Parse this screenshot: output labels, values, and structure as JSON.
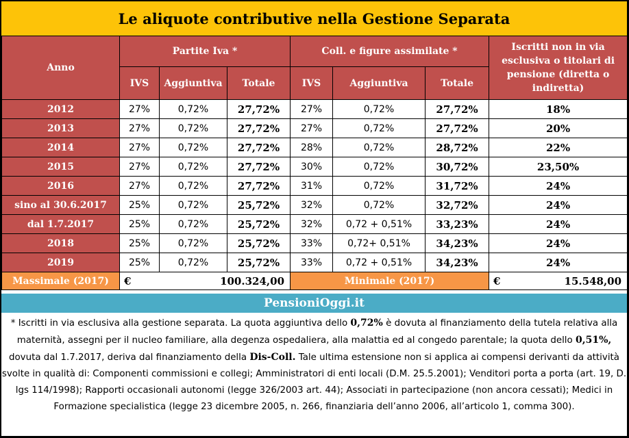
{
  "title": "Le aliquote contributive nella Gestione Separata",
  "headers": {
    "anno": "Anno",
    "group1": "Partite Iva *",
    "group2": "Coll. e figure assimilate *",
    "group3": "Iscritti non in via esclusiva o titolari di pensione (diretta o indiretta)",
    "ivs": "IVS",
    "aggiuntiva": "Aggiuntiva",
    "totale": "Totale"
  },
  "rows": [
    {
      "anno": "2012",
      "pi_ivs": "27%",
      "pi_agg": "0,72%",
      "pi_tot": "27,72%",
      "co_ivs": "27%",
      "co_agg": "0,72%",
      "co_tot": "27,72%",
      "iscr": "18%"
    },
    {
      "anno": "2013",
      "pi_ivs": "27%",
      "pi_agg": "0,72%",
      "pi_tot": "27,72%",
      "co_ivs": "27%",
      "co_agg": "0,72%",
      "co_tot": "27,72%",
      "iscr": "20%"
    },
    {
      "anno": "2014",
      "pi_ivs": "27%",
      "pi_agg": "0,72%",
      "pi_tot": "27,72%",
      "co_ivs": "28%",
      "co_agg": "0,72%",
      "co_tot": "28,72%",
      "iscr": "22%"
    },
    {
      "anno": "2015",
      "pi_ivs": "27%",
      "pi_agg": "0,72%",
      "pi_tot": "27,72%",
      "co_ivs": "30%",
      "co_agg": "0,72%",
      "co_tot": "30,72%",
      "iscr": "23,50%"
    },
    {
      "anno": "2016",
      "pi_ivs": "27%",
      "pi_agg": "0,72%",
      "pi_tot": "27,72%",
      "co_ivs": "31%",
      "co_agg": "0,72%",
      "co_tot": "31,72%",
      "iscr": "24%"
    },
    {
      "anno": "sino al 30.6.2017",
      "pi_ivs": "25%",
      "pi_agg": "0,72%",
      "pi_tot": "25,72%",
      "co_ivs": "32%",
      "co_agg": "0,72%",
      "co_tot": "32,72%",
      "iscr": "24%"
    },
    {
      "anno": "dal 1.7.2017",
      "pi_ivs": "25%",
      "pi_agg": "0,72%",
      "pi_tot": "25,72%",
      "co_ivs": "32%",
      "co_agg": "0,72 + 0,51%",
      "co_tot": "33,23%",
      "iscr": "24%"
    },
    {
      "anno": "2018",
      "pi_ivs": "25%",
      "pi_agg": "0,72%",
      "pi_tot": "25,72%",
      "co_ivs": "33%",
      "co_agg": "0,72+ 0,51%",
      "co_tot": "34,23%",
      "iscr": "24%"
    },
    {
      "anno": "2019",
      "pi_ivs": "25%",
      "pi_agg": "0,72%",
      "pi_tot": "25,72%",
      "co_ivs": "33%",
      "co_agg": "0,72 + 0,51%",
      "co_tot": "34,23%",
      "iscr": "24%"
    }
  ],
  "footer_row": {
    "massimale_label": "Massimale (2017)",
    "massimale_currency": "€",
    "massimale_value": "100.324,00",
    "minimale_label": "Minimale (2017)",
    "minimale_currency": "€",
    "minimale_value": "15.548,00"
  },
  "brand": "PensioniOggi.it",
  "note": {
    "p1": "* Iscritti in via esclusiva alla gestione separata. La quota aggiuntiva dello ",
    "b1": "0,72%",
    "p2": " è dovuta al finanziamento della tutela relativa alla maternità, assegni per il nucleo familiare, alla degenza ospedaliera, alla malattia ed al congedo parentale; la quota dello ",
    "b2": "0,51%,",
    "p3": " dovuta dal 1.7.2017, deriva dal finanziamento della ",
    "b3": "Dis-Coll.",
    "p4": " Tale ultima estensione non si applica ai compensi derivanti da attività svolte in qualità di:  Componenti commissioni e collegi; Amministratori di enti locali (D.M. 25.5.2001);  Venditori porta a porta (art. 19, D. lgs 114/1998); Rapporti occasionali autonomi (legge 326/2003 art. 44);  Associati in partecipazione (non ancora cessati);  Medici in Formazione specialistica (legge 23 dicembre 2005, n. 266, finanziaria dell’anno 2006, all’articolo 1, comma 300)."
  },
  "colors": {
    "title_bg": "#fdc308",
    "header_bg": "#c0504d",
    "footer_label_bg": "#f79646",
    "brand_bg": "#4bacc6"
  }
}
